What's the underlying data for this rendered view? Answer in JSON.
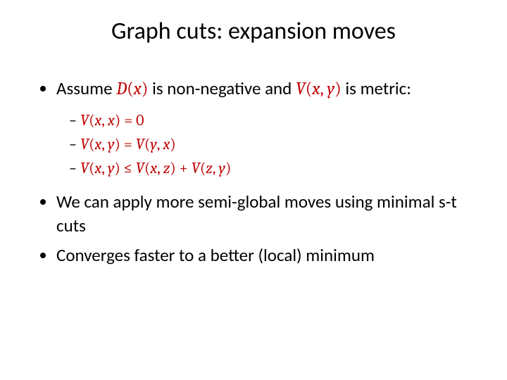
{
  "colors": {
    "background": "#ffffff",
    "text": "#000000",
    "math": "#c00000"
  },
  "fonts": {
    "body": "Calibri",
    "math": "Cambria Math",
    "title_size_pt": 34,
    "bullet_size_pt": 25,
    "subbullet_size_pt": 22
  },
  "title": "Graph cuts: expansion moves",
  "bullet1": {
    "pre": "Assume ",
    "m1_fn": "D",
    "m1_open": "(",
    "m1_arg": "x",
    "m1_close": ")",
    "mid": " is non-negative and ",
    "m2_fn": "V",
    "m2_open": "(",
    "m2_a1": "x",
    "m2_comma": ", ",
    "m2_a2": "y",
    "m2_close": ")",
    "post": " is metric:"
  },
  "sub": {
    "s1_fn": "V",
    "s1_op": "(",
    "s1_a": "x",
    "s1_c1": ", ",
    "s1_b": "x",
    "s1_cl": ")",
    "s1_eq": " = 0",
    "s2l_fn": "V",
    "s2l_op": "(",
    "s2l_a": "x",
    "s2l_c": ", ",
    "s2l_b": "y",
    "s2l_cl": ")",
    "s2_eq": " = ",
    "s2r_fn": "V",
    "s2r_op": "(",
    "s2r_a": "y",
    "s2r_c": ", ",
    "s2r_b": "x",
    "s2r_cl": ")",
    "s3l_fn": "V",
    "s3l_op": "(",
    "s3l_a": "x",
    "s3l_c": ", ",
    "s3l_b": "y",
    "s3l_cl": ")",
    "s3_le": " ≤ ",
    "s3m_fn": "V",
    "s3m_op": "(",
    "s3m_a": "x",
    "s3m_c": ", ",
    "s3m_b": "z",
    "s3m_cl": ")",
    "s3_plus": " + ",
    "s3r_fn": "V",
    "s3r_op": "(",
    "s3r_a": "z",
    "s3r_c": ", ",
    "s3r_b": "y",
    "s3r_cl": ")"
  },
  "bullet2": "We can apply more semi-global moves using minimal s-t cuts",
  "bullet3": "Converges faster to a better (local) minimum"
}
